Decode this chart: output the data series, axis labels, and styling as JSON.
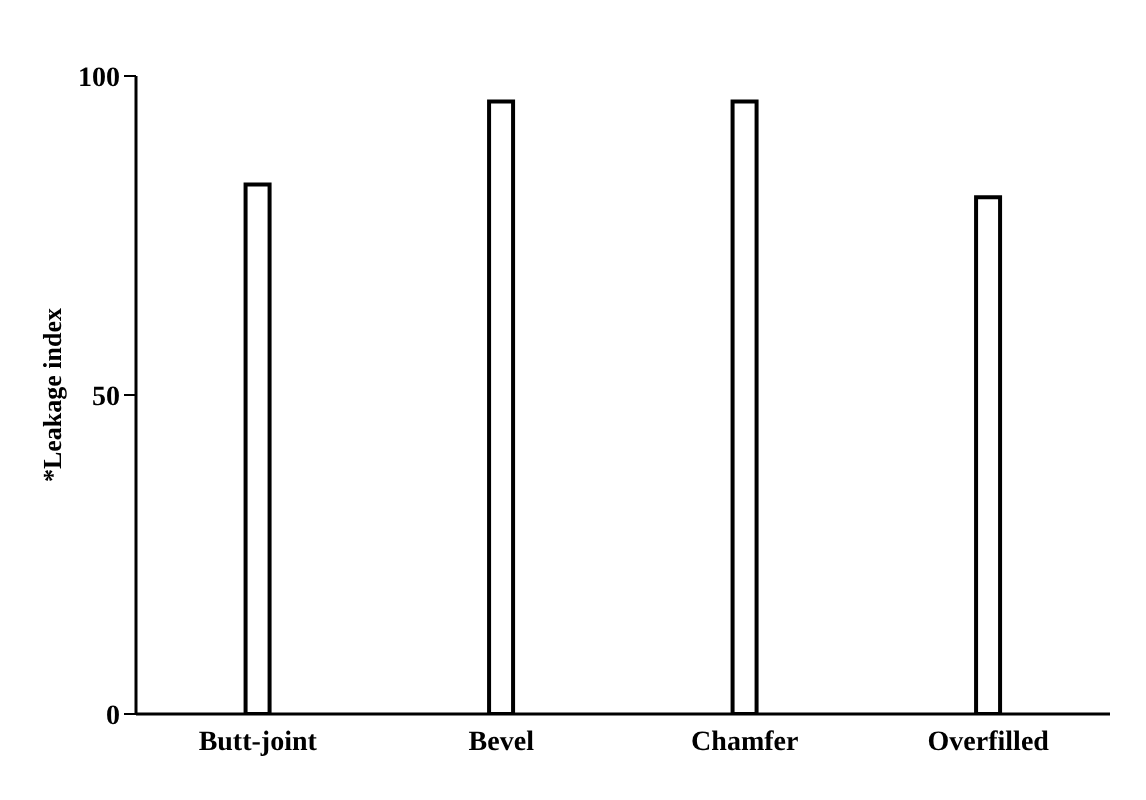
{
  "chart_data": {
    "type": "bar",
    "ylabel": "*Leakage index",
    "categories": [
      "Butt-joint",
      "Bevel",
      "Chamfer",
      "Overfilled"
    ],
    "values": [
      83,
      96,
      96,
      81
    ],
    "color": "#ffffff",
    "ylim": [
      0,
      100
    ],
    "yticks": [
      0,
      50,
      100
    ],
    "grid": false,
    "legend": false
  }
}
